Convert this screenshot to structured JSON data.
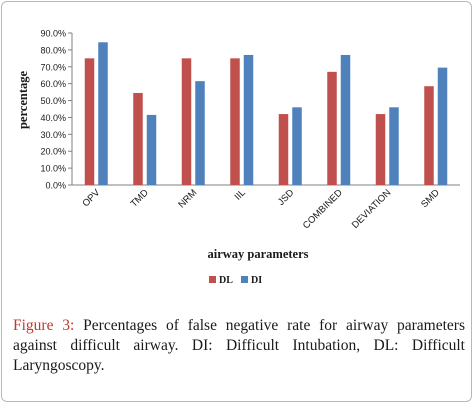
{
  "chart_data": {
    "type": "bar",
    "categories": [
      "OPV",
      "TMD",
      "NRM",
      "IIL",
      "JSD",
      "COMBINED",
      "DEVIATION",
      "SMD"
    ],
    "series": [
      {
        "name": "DL",
        "values": [
          75.0,
          54.5,
          75.0,
          75.0,
          42.0,
          67.0,
          42.0,
          58.5
        ],
        "color": "#c0504d"
      },
      {
        "name": "DI",
        "values": [
          84.5,
          41.5,
          61.5,
          77.0,
          46.0,
          77.0,
          46.0,
          69.5
        ],
        "color": "#4f81bd"
      }
    ],
    "title": "",
    "xlabel": "airway parameters",
    "ylabel": "percentage",
    "ylim": [
      0,
      90
    ],
    "yticks": [
      "0.0%",
      "10.0%",
      "20.0%",
      "30.0%",
      "40.0%",
      "50.0%",
      "60.0%",
      "70.0%",
      "80.0%",
      "90.0%"
    ],
    "grid": false,
    "legend_position": "bottom"
  },
  "caption": {
    "label": "Figure 3:",
    "text": " Percentages of false negative rate for airway parameters against difficult airway. DI: Difficult Intubation, DL: Difficult Laryngoscopy."
  }
}
